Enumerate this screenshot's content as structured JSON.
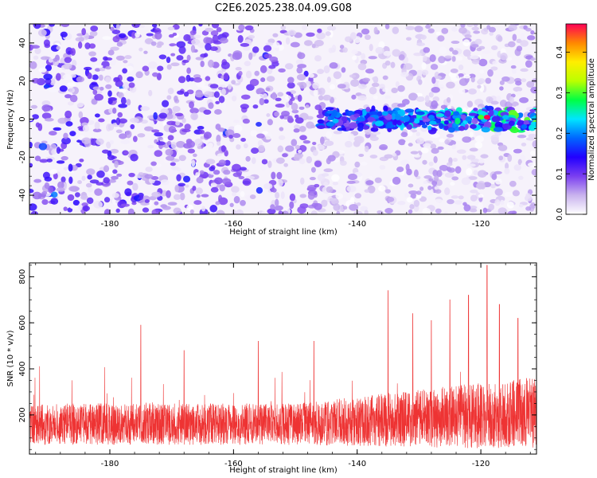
{
  "title": "C2E6.2025.238.04.09.G08",
  "chart_data": [
    {
      "type": "heatmap",
      "name": "spectrogram",
      "xlabel": "Height of straight line (km)",
      "ylabel": "Frequency (Hz)",
      "xlim": [
        -193,
        -111
      ],
      "ylim": [
        -50,
        50
      ],
      "x_ticks": [
        -180,
        -160,
        -140,
        -120
      ],
      "y_ticks": [
        -40,
        -20,
        0,
        20,
        40
      ],
      "colorbar": {
        "label": "Normalized spectral amplitude",
        "range": [
          0.0,
          0.47
        ],
        "ticks": [
          0.0,
          0.1,
          0.2,
          0.3,
          0.4
        ],
        "colors": [
          "#ffffff",
          "#c9b3ee",
          "#7b3ff0",
          "#2200ff",
          "#0066ff",
          "#00e5ff",
          "#00ff44",
          "#bbff00",
          "#ffee00",
          "#ff8800",
          "#ff0055"
        ]
      },
      "signal_band": {
        "x_start": -146,
        "x_end": -111,
        "freq_center": 0,
        "freq_halfwidth": 6,
        "peak_x": -119,
        "peak_freq": 1,
        "peak_value": 0.47
      }
    },
    {
      "type": "line",
      "name": "snr",
      "xlabel": "Height of straight line (km)",
      "ylabel": "SNR (10 * v/v)",
      "xlim": [
        -193,
        -111
      ],
      "ylim": [
        30,
        860
      ],
      "x_ticks": [
        -180,
        -160,
        -140,
        -120
      ],
      "y_ticks": [
        200,
        400,
        600,
        800
      ],
      "color": "#ee3333",
      "baseline": 160,
      "peak": {
        "x": -119,
        "y": 850
      },
      "spikes": [
        {
          "x": -175,
          "y": 590
        },
        {
          "x": -168,
          "y": 480
        },
        {
          "x": -156,
          "y": 520
        },
        {
          "x": -147,
          "y": 520
        },
        {
          "x": -135,
          "y": 740
        },
        {
          "x": -131,
          "y": 640
        },
        {
          "x": -128,
          "y": 610
        },
        {
          "x": -125,
          "y": 700
        },
        {
          "x": -122,
          "y": 720
        },
        {
          "x": -119,
          "y": 850
        },
        {
          "x": -117,
          "y": 680
        },
        {
          "x": -114,
          "y": 620
        }
      ]
    }
  ]
}
